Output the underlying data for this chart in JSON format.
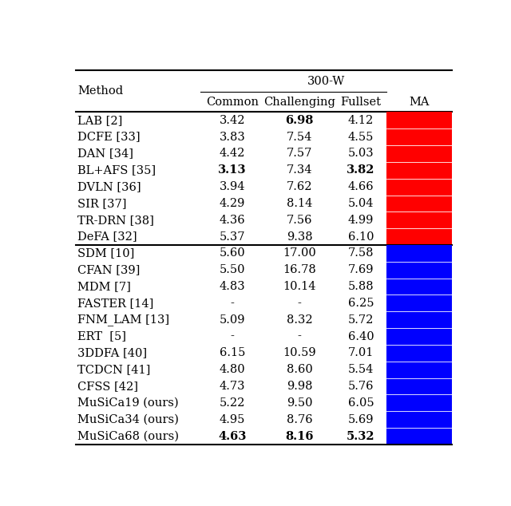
{
  "title": "300-W",
  "col_headers": [
    "Method",
    "Common",
    "Challenging",
    "Fullset",
    "MA"
  ],
  "group1": {
    "rows": [
      {
        "method": "LAB [2]",
        "common": "3.42",
        "challenging": "6.98",
        "fullset": "4.12",
        "bold_common": false,
        "bold_challenging": true,
        "bold_fullset": false
      },
      {
        "method": "DCFE [33]",
        "common": "3.83",
        "challenging": "7.54",
        "fullset": "4.55",
        "bold_common": false,
        "bold_challenging": false,
        "bold_fullset": false
      },
      {
        "method": "DAN [34]",
        "common": "4.42",
        "challenging": "7.57",
        "fullset": "5.03",
        "bold_common": false,
        "bold_challenging": false,
        "bold_fullset": false
      },
      {
        "method": "BL+AFS [35]",
        "common": "3.13",
        "challenging": "7.34",
        "fullset": "3.82",
        "bold_common": true,
        "bold_challenging": false,
        "bold_fullset": true
      },
      {
        "method": "DVLN [36]",
        "common": "3.94",
        "challenging": "7.62",
        "fullset": "4.66",
        "bold_common": false,
        "bold_challenging": false,
        "bold_fullset": false
      },
      {
        "method": "SIR [37]",
        "common": "4.29",
        "challenging": "8.14",
        "fullset": "5.04",
        "bold_common": false,
        "bold_challenging": false,
        "bold_fullset": false
      },
      {
        "method": "TR-DRN [38]",
        "common": "4.36",
        "challenging": "7.56",
        "fullset": "4.99",
        "bold_common": false,
        "bold_challenging": false,
        "bold_fullset": false
      },
      {
        "method": "DeFA [32]",
        "common": "5.37",
        "challenging": "9.38",
        "fullset": "6.10",
        "bold_common": false,
        "bold_challenging": false,
        "bold_fullset": false
      }
    ],
    "color": "#FF0000"
  },
  "group2": {
    "rows": [
      {
        "method": "SDM [10]",
        "common": "5.60",
        "challenging": "17.00",
        "fullset": "7.58",
        "bold_common": false,
        "bold_challenging": false,
        "bold_fullset": false
      },
      {
        "method": "CFAN [39]",
        "common": "5.50",
        "challenging": "16.78",
        "fullset": "7.69",
        "bold_common": false,
        "bold_challenging": false,
        "bold_fullset": false
      },
      {
        "method": "MDM [7]",
        "common": "4.83",
        "challenging": "10.14",
        "fullset": "5.88",
        "bold_common": false,
        "bold_challenging": false,
        "bold_fullset": false
      },
      {
        "method": "FASTER [14]",
        "common": "-",
        "challenging": "-",
        "fullset": "6.25",
        "bold_common": false,
        "bold_challenging": false,
        "bold_fullset": false
      },
      {
        "method": "FNM_LAM [13]",
        "common": "5.09",
        "challenging": "8.32",
        "fullset": "5.72",
        "bold_common": false,
        "bold_challenging": false,
        "bold_fullset": false
      },
      {
        "method": "ERT  [5]",
        "common": "-",
        "challenging": "-",
        "fullset": "6.40",
        "bold_common": false,
        "bold_challenging": false,
        "bold_fullset": false
      },
      {
        "method": "3DDFA [40]",
        "common": "6.15",
        "challenging": "10.59",
        "fullset": "7.01",
        "bold_common": false,
        "bold_challenging": false,
        "bold_fullset": false
      },
      {
        "method": "TCDCN [41]",
        "common": "4.80",
        "challenging": "8.60",
        "fullset": "5.54",
        "bold_common": false,
        "bold_challenging": false,
        "bold_fullset": false
      },
      {
        "method": "CFSS [42]",
        "common": "4.73",
        "challenging": "9.98",
        "fullset": "5.76",
        "bold_common": false,
        "bold_challenging": false,
        "bold_fullset": false
      },
      {
        "method": "MuSiCa19 (ours)",
        "common": "5.22",
        "challenging": "9.50",
        "fullset": "6.05",
        "bold_common": false,
        "bold_challenging": false,
        "bold_fullset": false
      },
      {
        "method": "MuSiCa34 (ours)",
        "common": "4.95",
        "challenging": "8.76",
        "fullset": "5.69",
        "bold_common": false,
        "bold_challenging": false,
        "bold_fullset": false
      },
      {
        "method": "MuSiCa68 (ours)",
        "common": "4.63",
        "challenging": "8.16",
        "fullset": "5.32",
        "bold_common": true,
        "bold_challenging": true,
        "bold_fullset": true
      }
    ],
    "color": "#0000FF"
  },
  "bg_color": "#FFFFFF",
  "text_color": "#000000",
  "line_color": "#000000",
  "font_size": 10.5,
  "header_font_size": 10.5,
  "figsize": [
    6.4,
    6.34
  ],
  "dpi": 100
}
